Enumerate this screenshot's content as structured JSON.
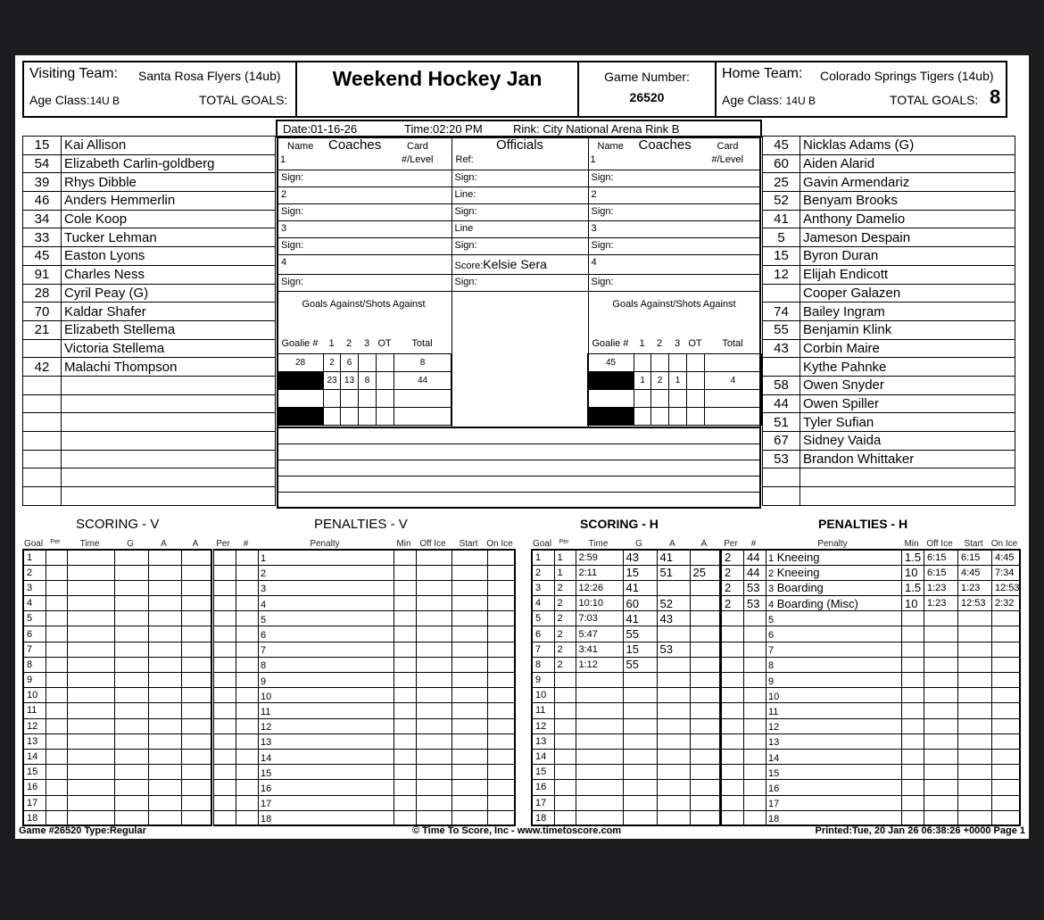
{
  "header": {
    "visiting_label": "Visiting Team:",
    "visiting_team": "Santa Rosa Flyers (14ub)",
    "visiting_age_label": "Age Class:",
    "visiting_age": "14U B",
    "visiting_total_label": "TOTAL GOALS:",
    "visiting_total": "",
    "title": "Weekend Hockey Jan",
    "game_number_label": "Game Number:",
    "game_number": "26520",
    "home_label": "Home Team:",
    "home_team": "Colorado Springs Tigers (14ub)",
    "home_age_label": "Age Class:",
    "home_age": "14U B",
    "home_total_label": "TOTAL GOALS:",
    "home_total": "8"
  },
  "info": {
    "date": "Date:01-16-26",
    "time": "Time:02:20 PM",
    "rink": "Rink: City National Arena Rink B"
  },
  "officials": {
    "name_label": "Name",
    "coaches_label": "Coaches",
    "card_label": "Card",
    "level_label": "#/Level",
    "officials_label": "Officials",
    "sign": "Sign:",
    "ref": "Ref:",
    "line1": "Line:",
    "line2": "Line",
    "score_label": "Score:",
    "scorekeeper": "Kelsie Sera",
    "coach_nums": [
      "1",
      "2",
      "3",
      "4"
    ]
  },
  "goalies": {
    "title": "Goals Against/Shots Against",
    "headers": [
      "Goalie #",
      "1",
      "2",
      "3",
      "OT",
      "Total"
    ],
    "visitor": [
      [
        "28",
        "2",
        "6",
        "",
        "",
        "8"
      ],
      [
        "",
        "23",
        "13",
        "8",
        "",
        "44"
      ],
      [
        "",
        "",
        "",
        "",
        "",
        ""
      ],
      [
        "",
        "",
        "",
        "",
        "",
        ""
      ]
    ],
    "home": [
      [
        "45",
        "",
        "",
        "",
        "",
        ""
      ],
      [
        "",
        "1",
        "2",
        "1",
        "",
        "4"
      ],
      [
        "",
        "",
        "",
        "",
        "",
        ""
      ],
      [
        "",
        "",
        "",
        "",
        "",
        ""
      ]
    ]
  },
  "visitor_roster": [
    [
      "15",
      "Kai Allison"
    ],
    [
      "54",
      "Elizabeth Carlin-goldberg"
    ],
    [
      "39",
      "Rhys Dibble"
    ],
    [
      "46",
      "Anders Hemmerlin"
    ],
    [
      "34",
      "Cole Koop"
    ],
    [
      "33",
      "Tucker Lehman"
    ],
    [
      "45",
      "Easton Lyons"
    ],
    [
      "91",
      "Charles Ness"
    ],
    [
      "28",
      "Cyril Peay  (G)"
    ],
    [
      "70",
      "Kaldar Shafer"
    ],
    [
      "21",
      "Elizabeth Stellema"
    ],
    [
      "",
      "Victoria Stellema"
    ],
    [
      "42",
      "Malachi Thompson"
    ],
    [
      "",
      ""
    ],
    [
      "",
      ""
    ],
    [
      "",
      ""
    ],
    [
      "",
      ""
    ],
    [
      "",
      ""
    ],
    [
      "",
      ""
    ],
    [
      "",
      ""
    ]
  ],
  "home_roster": [
    [
      "45",
      "Nicklas Adams  (G)"
    ],
    [
      "60",
      "Aiden Alarid"
    ],
    [
      "25",
      "Gavin Armendariz"
    ],
    [
      "52",
      "Benyam Brooks"
    ],
    [
      "41",
      "Anthony Damelio"
    ],
    [
      "5",
      "Jameson Despain"
    ],
    [
      "15",
      "Byron Duran"
    ],
    [
      "12",
      "Elijah Endicott"
    ],
    [
      "",
      "Cooper Galazen"
    ],
    [
      "74",
      "Bailey Ingram"
    ],
    [
      "55",
      "Benjamin Klink"
    ],
    [
      "43",
      "Corbin Maire"
    ],
    [
      "",
      "Kythe Pahnke"
    ],
    [
      "58",
      "Owen Snyder"
    ],
    [
      "44",
      "Owen Spiller"
    ],
    [
      "51",
      "Tyler Sufian"
    ],
    [
      "67",
      "Sidney Vaida"
    ],
    [
      "53",
      "Brandon Whittaker"
    ],
    [
      "",
      ""
    ],
    [
      "",
      ""
    ]
  ],
  "sections": {
    "scoring_v": "SCORING - V",
    "penalties_v": "PENALTIES - V",
    "scoring_h": "SCORING - H",
    "penalties_h": "PENALTIES - H"
  },
  "scoring_headers": [
    "Goal",
    "Per",
    "Time",
    "G",
    "A",
    "A"
  ],
  "penalty_headers": [
    "Per",
    "#",
    "Penalty",
    "Min",
    "Off Ice",
    "Start",
    "On Ice"
  ],
  "scoring_h": [
    [
      "1",
      "2:59",
      "43",
      "41",
      ""
    ],
    [
      "1",
      "2:11",
      "15",
      "51",
      "25"
    ],
    [
      "2",
      "12:26",
      "41",
      "",
      ""
    ],
    [
      "2",
      "10:10",
      "60",
      "52",
      ""
    ],
    [
      "2",
      "7:03",
      "41",
      "43",
      ""
    ],
    [
      "2",
      "5:47",
      "55",
      "",
      ""
    ],
    [
      "2",
      "3:41",
      "15",
      "53",
      ""
    ],
    [
      "2",
      "1:12",
      "55",
      "",
      ""
    ]
  ],
  "penalties_h": [
    [
      "2",
      "44",
      "Kneeing",
      "1.5",
      "6:15",
      "6:15",
      "4:45"
    ],
    [
      "2",
      "44",
      "Kneeing",
      "10",
      "6:15",
      "4:45",
      "7:34"
    ],
    [
      "2",
      "53",
      "Boarding",
      "1.5",
      "1:23",
      "1:23",
      "12:53"
    ],
    [
      "2",
      "53",
      "Boarding (Misc)",
      "10",
      "1:23",
      "12:53",
      "2:32"
    ]
  ],
  "footer": {
    "left": "Game #26520 Type:Regular",
    "center": "© Time To Score, Inc - www.timetoscore.com",
    "right": "Printed:Tue, 20 Jan 26 06:38:26 +0000 Page 1"
  }
}
